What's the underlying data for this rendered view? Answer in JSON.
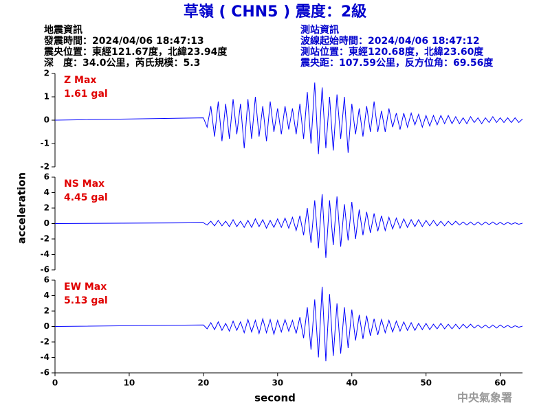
{
  "header": {
    "title": "草嶺 ( CHN5 ) 震度：2級",
    "left": [
      "地震資訊",
      "發震時間：2024/04/06 18:47:13",
      "震央位置：東經121.67度，北緯23.94度",
      "深　度：34.0公里，芮氏規模：5.3"
    ],
    "right": [
      "測站資訊",
      "波線起始時間：2024/04/06 18:47:12",
      "測站位置：東經120.68度，北緯23.60度",
      "震央距：107.59公里，反方位角：69.56度"
    ],
    "watermark": "中央氣象署"
  },
  "chart_data": [
    {
      "type": "line",
      "annotations": [
        "Z Max",
        "1.61 gal"
      ],
      "annotation_color": "#e00000",
      "xlim": [
        0,
        63
      ],
      "ylim": [
        -2,
        2
      ],
      "yticks": [
        -2,
        -1,
        0,
        1,
        2
      ],
      "x": [
        0,
        20,
        20.5,
        21,
        21.5,
        22,
        22.5,
        23,
        23.5,
        24,
        24.5,
        25,
        25.5,
        26,
        26.5,
        27,
        27.5,
        28,
        28.5,
        29,
        29.5,
        30,
        30.5,
        31,
        31.5,
        32,
        32.5,
        33,
        33.5,
        34,
        34.5,
        35,
        35.5,
        36,
        36.5,
        37,
        37.5,
        38,
        38.5,
        39,
        39.5,
        40,
        40.5,
        41,
        41.5,
        42,
        42.5,
        43,
        43.5,
        44,
        44.5,
        45,
        45.5,
        46,
        46.5,
        47,
        47.5,
        48,
        48.5,
        49,
        49.5,
        50,
        50.5,
        51,
        51.5,
        52,
        52.5,
        53,
        53.5,
        54,
        54.5,
        55,
        55.5,
        56,
        56.5,
        57,
        57.5,
        58,
        58.5,
        59,
        59.5,
        60,
        60.5,
        61,
        61.5,
        62,
        62.5,
        63
      ],
      "series": [
        {
          "color": "#0000ff",
          "values": [
            0,
            0.1,
            -0.3,
            0.6,
            -0.7,
            0.8,
            -0.9,
            0.7,
            -0.8,
            0.9,
            -0.6,
            0.7,
            -1.2,
            0.9,
            -0.8,
            1.0,
            -0.7,
            0.6,
            -0.9,
            0.8,
            -0.5,
            0.5,
            -0.6,
            0.6,
            -0.4,
            0.5,
            -0.6,
            0.7,
            -0.8,
            1.2,
            -1.0,
            1.61,
            -1.45,
            1.4,
            -1.2,
            1.0,
            -1.3,
            1.1,
            -0.8,
            1.0,
            -1.4,
            0.7,
            -0.6,
            0.5,
            -0.7,
            0.6,
            -0.5,
            0.8,
            -0.5,
            0.4,
            -0.5,
            0.5,
            -0.3,
            0.3,
            -0.4,
            0.3,
            -0.3,
            0.3,
            -0.2,
            0.25,
            -0.3,
            0.2,
            -0.25,
            0.2,
            -0.2,
            0.2,
            -0.15,
            0.2,
            -0.15,
            0.15,
            -0.15,
            0.1,
            -0.15,
            0.15,
            -0.1,
            0.1,
            -0.15,
            0.1,
            -0.1,
            0.15,
            -0.1,
            0.1,
            -0.1,
            0.1,
            -0.1,
            0.1,
            -0.1,
            0.05
          ]
        }
      ]
    },
    {
      "type": "line",
      "annotations": [
        "NS Max",
        "4.45 gal"
      ],
      "annotation_color": "#e00000",
      "ylabel": "acceleration",
      "xlim": [
        0,
        63
      ],
      "ylim": [
        -6,
        6
      ],
      "yticks": [
        -6,
        -4,
        -2,
        0,
        2,
        4,
        6
      ],
      "x": [
        0,
        20,
        20.5,
        21,
        21.5,
        22,
        22.5,
        23,
        23.5,
        24,
        24.5,
        25,
        25.5,
        26,
        26.5,
        27,
        27.5,
        28,
        28.5,
        29,
        29.5,
        30,
        30.5,
        31,
        31.5,
        32,
        32.5,
        33,
        33.5,
        34,
        34.5,
        35,
        35.5,
        36,
        36.5,
        37,
        37.5,
        38,
        38.5,
        39,
        39.5,
        40,
        40.5,
        41,
        41.5,
        42,
        42.5,
        43,
        43.5,
        44,
        44.5,
        45,
        45.5,
        46,
        46.5,
        47,
        47.5,
        48,
        48.5,
        49,
        49.5,
        50,
        50.5,
        51,
        51.5,
        52,
        52.5,
        53,
        53.5,
        54,
        54.5,
        55,
        55.5,
        56,
        56.5,
        57,
        57.5,
        58,
        58.5,
        59,
        59.5,
        60,
        60.5,
        61,
        61.5,
        62,
        62.5,
        63
      ],
      "series": [
        {
          "color": "#0000ff",
          "values": [
            0,
            0.1,
            -0.2,
            0.3,
            -0.3,
            0.4,
            -0.3,
            0.3,
            -0.4,
            0.5,
            -0.4,
            0.3,
            -0.5,
            0.4,
            -0.5,
            0.6,
            -0.4,
            0.5,
            -0.6,
            0.4,
            -0.5,
            0.6,
            -0.5,
            0.7,
            -0.6,
            0.8,
            -0.9,
            1.0,
            -1.5,
            2.0,
            -2.5,
            3.0,
            -3.2,
            3.8,
            -4.45,
            3.0,
            -2.8,
            3.5,
            -3.0,
            2.5,
            -2.2,
            2.8,
            -2.0,
            1.8,
            -1.5,
            1.5,
            -1.2,
            1.3,
            -1.0,
            1.0,
            -0.9,
            0.8,
            -0.7,
            0.7,
            -0.6,
            0.6,
            -0.5,
            0.5,
            -0.4,
            0.5,
            -0.4,
            0.4,
            -0.3,
            0.4,
            -0.3,
            0.3,
            -0.3,
            0.3,
            -0.2,
            0.3,
            -0.2,
            0.2,
            -0.2,
            0.2,
            -0.2,
            0.2,
            -0.2,
            0.2,
            -0.15,
            0.2,
            -0.15,
            0.15,
            -0.15,
            0.15,
            -0.1,
            0.1,
            -0.1,
            0.05
          ]
        }
      ]
    },
    {
      "type": "line",
      "annotations": [
        "EW Max",
        "5.13 gal"
      ],
      "annotation_color": "#e00000",
      "xlabel": "second",
      "xlim": [
        0,
        63
      ],
      "xticks": [
        0,
        10,
        20,
        30,
        40,
        50,
        60
      ],
      "ylim": [
        -6,
        6
      ],
      "yticks": [
        -6,
        -4,
        -2,
        0,
        2,
        4,
        6
      ],
      "x": [
        0,
        20,
        20.5,
        21,
        21.5,
        22,
        22.5,
        23,
        23.5,
        24,
        24.5,
        25,
        25.5,
        26,
        26.5,
        27,
        27.5,
        28,
        28.5,
        29,
        29.5,
        30,
        30.5,
        31,
        31.5,
        32,
        32.5,
        33,
        33.5,
        34,
        34.5,
        35,
        35.5,
        36,
        36.5,
        37,
        37.5,
        38,
        38.5,
        39,
        39.5,
        40,
        40.5,
        41,
        41.5,
        42,
        42.5,
        43,
        43.5,
        44,
        44.5,
        45,
        45.5,
        46,
        46.5,
        47,
        47.5,
        48,
        48.5,
        49,
        49.5,
        50,
        50.5,
        51,
        51.5,
        52,
        52.5,
        53,
        53.5,
        54,
        54.5,
        55,
        55.5,
        56,
        56.5,
        57,
        57.5,
        58,
        58.5,
        59,
        59.5,
        60,
        60.5,
        61,
        61.5,
        62,
        62.5,
        63
      ],
      "series": [
        {
          "color": "#0000ff",
          "values": [
            0,
            0.2,
            -0.3,
            0.5,
            -0.4,
            0.6,
            -0.5,
            0.4,
            -0.6,
            0.7,
            -0.5,
            0.6,
            -0.8,
            0.9,
            -0.7,
            0.8,
            -0.9,
            1.0,
            -0.8,
            0.9,
            -1.0,
            0.8,
            -0.7,
            0.9,
            -0.6,
            0.8,
            -0.9,
            1.2,
            -1.5,
            2.5,
            -3.0,
            3.5,
            -4.0,
            5.13,
            -4.5,
            4.2,
            -3.8,
            3.0,
            -3.5,
            2.5,
            -2.8,
            2.2,
            -1.8,
            1.5,
            -1.6,
            1.4,
            -1.2,
            1.0,
            -1.1,
            0.9,
            -0.8,
            0.8,
            -0.7,
            0.7,
            -0.6,
            0.6,
            -0.5,
            0.5,
            -0.5,
            0.4,
            -0.4,
            0.4,
            -0.4,
            0.3,
            -0.3,
            0.4,
            -0.3,
            0.3,
            -0.3,
            0.3,
            -0.3,
            0.3,
            -0.2,
            0.3,
            -0.2,
            0.2,
            -0.2,
            0.2,
            -0.2,
            0.2,
            -0.2,
            0.2,
            -0.15,
            0.15,
            -0.15,
            0.1,
            -0.1,
            0.05
          ]
        }
      ]
    }
  ]
}
